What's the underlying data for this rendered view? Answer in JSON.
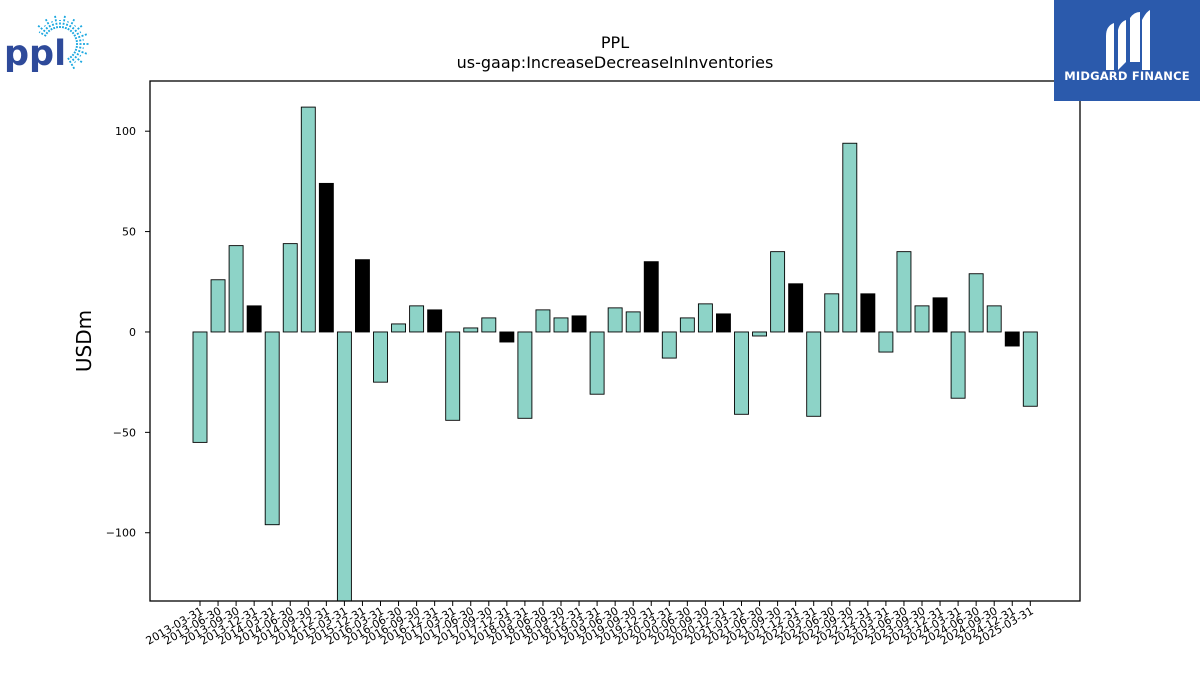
{
  "logos": {
    "company_logo_text": "ppl",
    "brand_name": "MIDGARD FINANCE"
  },
  "colors": {
    "positive_bar": "#8dd3c7",
    "highlight_bar": "#000000",
    "brand_blue": "#2b5aac",
    "ppl_blue": "#2e4a9a",
    "ppl_sun": "#1aa7e0"
  },
  "chart_data": {
    "type": "bar",
    "title": "PPL",
    "subtitle": "us-gaap:IncreaseDecreaseInInventories",
    "ylabel": "USDm",
    "xlabel": "",
    "ylim": [
      -134,
      125
    ],
    "yticks": [
      -100,
      -50,
      0,
      50,
      100
    ],
    "ytick_labels": [
      "−100",
      "−50",
      "0",
      "50",
      "100"
    ],
    "categories": [
      "2013-03-31",
      "2013-06-30",
      "2013-09-30",
      "2013-12-31",
      "2014-03-31",
      "2014-06-30",
      "2014-09-30",
      "2014-12-31",
      "2015-03-31",
      "2015-12-31",
      "2016-03-31",
      "2016-06-30",
      "2016-09-30",
      "2016-12-31",
      "2017-03-31",
      "2017-06-30",
      "2017-09-30",
      "2017-12-31",
      "2018-03-31",
      "2018-06-30",
      "2018-09-30",
      "2018-12-31",
      "2019-03-31",
      "2019-06-30",
      "2019-09-30",
      "2019-12-31",
      "2020-03-31",
      "2020-06-30",
      "2020-09-30",
      "2020-12-31",
      "2021-03-31",
      "2021-06-30",
      "2021-09-30",
      "2021-12-31",
      "2022-03-31",
      "2022-06-30",
      "2022-09-30",
      "2022-12-31",
      "2023-03-31",
      "2023-06-30",
      "2023-09-30",
      "2023-12-31",
      "2024-03-31",
      "2024-06-30",
      "2024-09-30",
      "2024-12-31",
      "2025-03-31"
    ],
    "values": [
      -55,
      26,
      43,
      13,
      -96,
      44,
      112,
      74,
      -134,
      36,
      -25,
      4,
      13,
      11,
      -44,
      2,
      7,
      -5,
      -43,
      11,
      7,
      8,
      -31,
      12,
      10,
      35,
      -13,
      7,
      14,
      9,
      -41,
      -2,
      40,
      24,
      -42,
      19,
      94,
      19,
      -10,
      40,
      13,
      17,
      -33,
      29,
      13,
      -7,
      -37
    ],
    "highlight": [
      false,
      false,
      false,
      true,
      false,
      false,
      false,
      true,
      false,
      true,
      false,
      false,
      false,
      true,
      false,
      false,
      false,
      true,
      false,
      false,
      false,
      true,
      false,
      false,
      false,
      true,
      false,
      false,
      false,
      true,
      false,
      false,
      false,
      true,
      false,
      false,
      false,
      true,
      false,
      false,
      false,
      true,
      false,
      false,
      false,
      true,
      false
    ],
    "grid": false,
    "legend": "none"
  }
}
